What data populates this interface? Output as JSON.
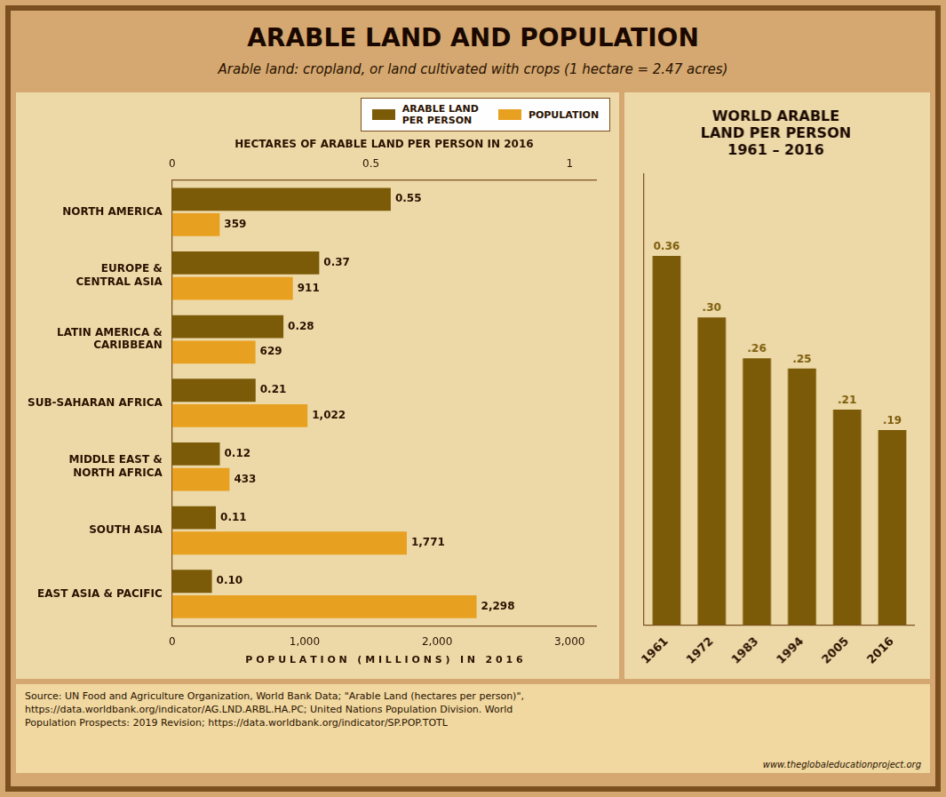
{
  "title": "ARABLE LAND AND POPULATION",
  "subtitle": "Arable land: cropland, or land cultivated with crops  (1 hectare = 2.47 acres)",
  "annotations": [
    "Source:  UN Food and Agriculture Organization, World Bank Data; \"Arable Land (hectares per person)\",\nhttps://data.worldbank.org/indicator/AG.LND.ARBL.HA.PC; United Nations Population Division. World\nPopulation Prospects: 2019 Revision; https://data.worldbank.org/indicator/SP.POP.TOTL",
    "www.theglobaleducationproject.org"
  ],
  "chart_data": [
    {
      "type": "bar",
      "orientation": "horizontal",
      "categories": [
        "NORTH AMERICA",
        "EUROPE &\nCENTRAL ASIA",
        "LATIN AMERICA &\nCARIBBEAN",
        "SUB-SAHARAN AFRICA",
        "MIDDLE EAST &\nNORTH AFRICA",
        "SOUTH ASIA",
        "EAST ASIA & PACIFIC"
      ],
      "series": [
        {
          "name": "ARABLE LAND\nPER PERSON",
          "color": "#7B5A08",
          "axis": "x2",
          "values": [
            0.55,
            0.37,
            0.28,
            0.21,
            0.12,
            0.11,
            0.1
          ],
          "value_labels": [
            "0.55",
            "0.37",
            "0.28",
            "0.21",
            "0.12",
            "0.11",
            "0.10"
          ]
        },
        {
          "name": "POPULATION",
          "color": "#E8A020",
          "values": [
            359,
            911,
            629,
            1022,
            433,
            1771,
            2298
          ],
          "value_labels": [
            "359",
            "911",
            "629",
            "1,022",
            "433",
            "1,771",
            "2,298"
          ]
        }
      ],
      "xlabel": "P O P U L A T I O N   ( M I L L I O N S )   I N   2 0 1 6",
      "x2label": "HECTARES OF ARABLE LAND PER PERSON IN 2016",
      "xlim": [
        0,
        3200
      ],
      "xticks": [
        0,
        {
          "value": 1000,
          "label": "1,000"
        },
        {
          "value": 2000,
          "label": "2,000"
        },
        {
          "value": 3000,
          "label": "3,000"
        }
      ],
      "x2lim": [
        0,
        1.0666666666666667
      ],
      "x2ticks": [
        0,
        0.5,
        1
      ],
      "grid": false,
      "legend": "top",
      "data_labels": true
    },
    {
      "type": "bar",
      "title": "WORLD ARABLE\nLAND PER PERSON\n1961 – 2016",
      "categories": [
        "1961",
        "1972",
        "1983",
        "1994",
        "2005",
        "2016"
      ],
      "values": [
        0.36,
        0.3,
        0.26,
        0.25,
        0.21,
        0.19
      ],
      "value_labels": [
        "0.36",
        ".30",
        ".26",
        ".25",
        ".21",
        ".19"
      ],
      "color": "#7B5A08",
      "ylim": [
        0,
        0.44
      ],
      "grid": false,
      "tick_labels": "x",
      "data_labels": true
    }
  ]
}
